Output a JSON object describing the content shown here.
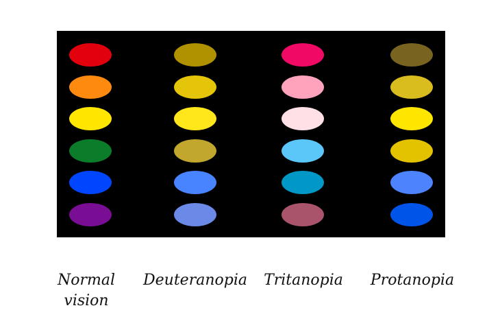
{
  "columns": [
    {
      "label_lines": [
        "Normal",
        "vision"
      ],
      "colors": [
        "#e2000d",
        "#ff8a10",
        "#ffe600",
        "#0b7d2a",
        "#0046ff",
        "#790d93"
      ]
    },
    {
      "label_lines": [
        "Deuteranopia"
      ],
      "colors": [
        "#b09200",
        "#e5c509",
        "#ffe71b",
        "#c1a72e",
        "#4884ff",
        "#6b8ae8"
      ]
    },
    {
      "label_lines": [
        "Tritanopia"
      ],
      "colors": [
        "#f00a66",
        "#ffa3bd",
        "#ffe0e6",
        "#5ac7f8",
        "#0197c7",
        "#a9546b"
      ]
    },
    {
      "label_lines": [
        "Protanopia"
      ],
      "colors": [
        "#786321",
        "#d9bc1e",
        "#ffe600",
        "#e3c300",
        "#4e83fe",
        "#0055e8"
      ]
    }
  ]
}
